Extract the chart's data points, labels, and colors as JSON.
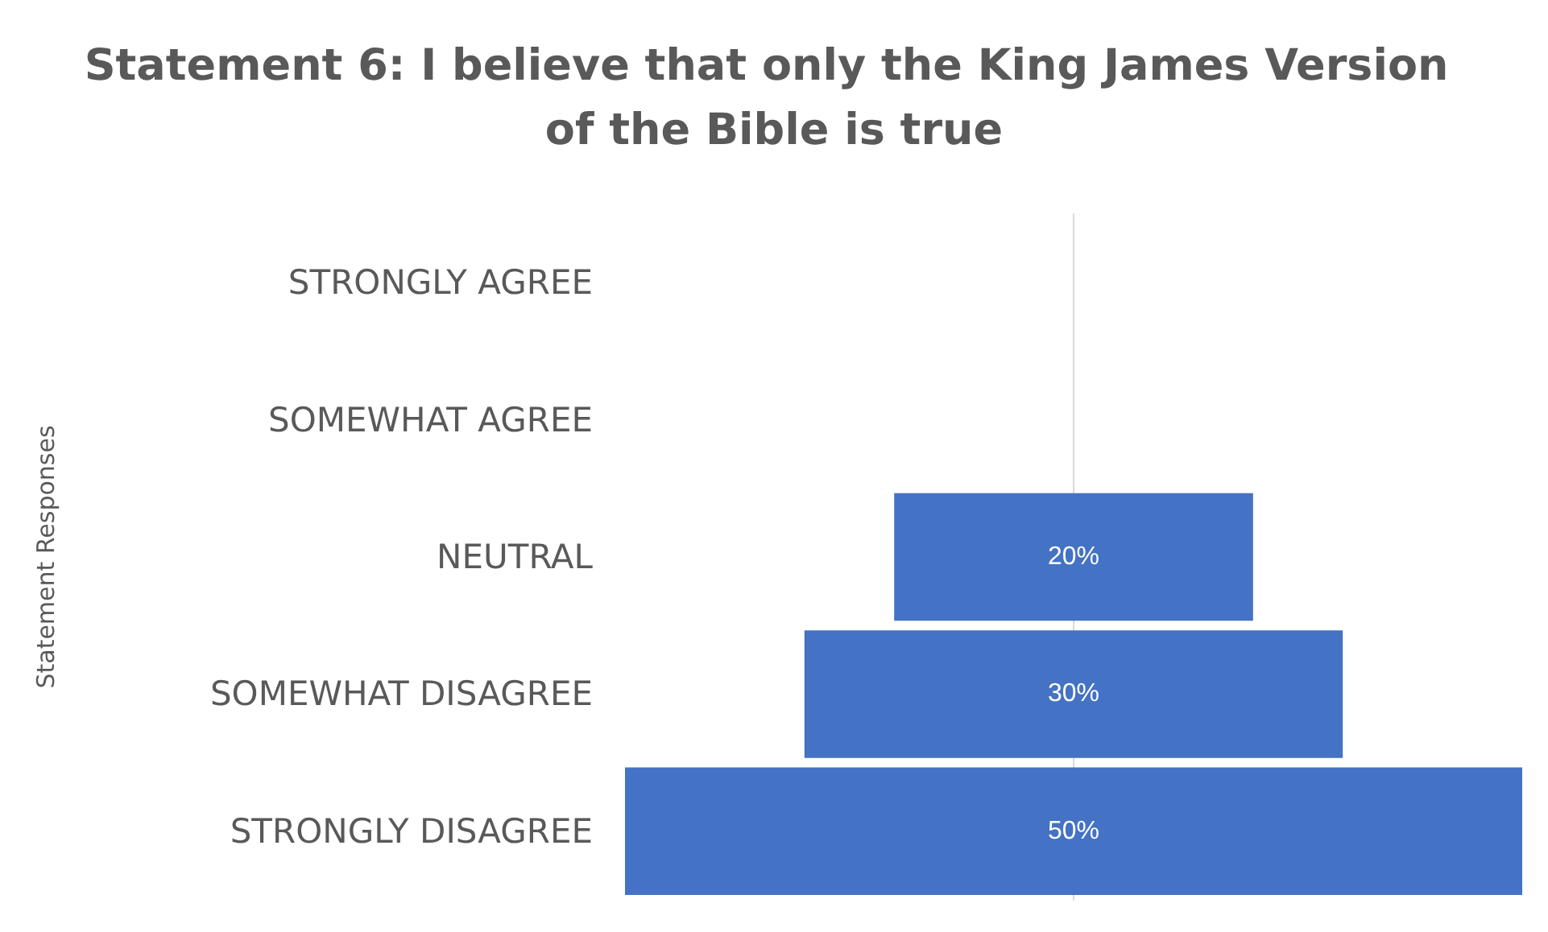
{
  "chart_data": {
    "type": "other",
    "title": "Statement 6: I believe that only the King James Version of the Bible is true",
    "ylabel": "Statement Responses",
    "categories": [
      "STRONGLY AGREE",
      "SOMEWHAT AGREE",
      "NEUTRAL",
      "SOMEWHAT DISAGREE",
      "STRONGLY DISAGREE"
    ],
    "values": [
      null,
      null,
      20,
      30,
      50
    ],
    "value_labels": [
      null,
      null,
      "20%",
      "30%",
      "50%"
    ],
    "color": "#4472c4"
  }
}
